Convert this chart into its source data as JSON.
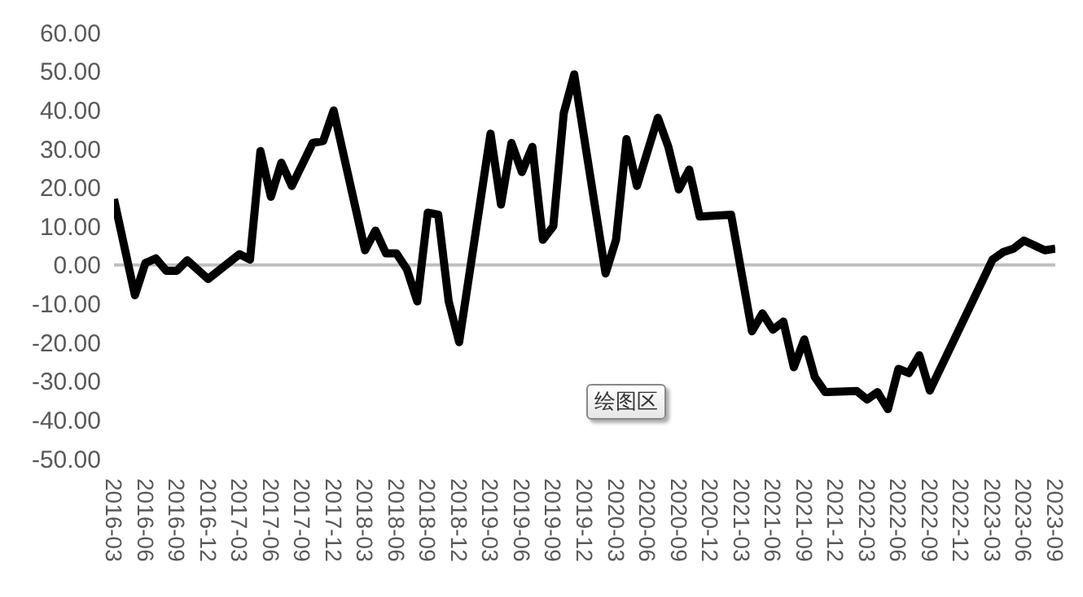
{
  "chart_data": {
    "type": "line",
    "x": [
      "2016-03",
      "2016-05",
      "2016-06",
      "2016-07",
      "2016-08",
      "2016-09",
      "2016-10",
      "2016-12",
      "2017-03",
      "2017-04",
      "2017-05",
      "2017-06",
      "2017-07",
      "2017-08",
      "2017-10",
      "2017-11",
      "2017-12",
      "2018-03",
      "2018-04",
      "2018-05",
      "2018-06",
      "2018-07",
      "2018-08",
      "2018-09",
      "2018-10",
      "2018-11",
      "2018-12",
      "2019-03",
      "2019-04",
      "2019-05",
      "2019-06",
      "2019-07",
      "2019-08",
      "2019-09",
      "2019-10",
      "2019-11",
      "2020-02",
      "2020-03",
      "2020-04",
      "2020-05",
      "2020-07",
      "2020-08",
      "2020-09",
      "2020-10",
      "2020-11",
      "2021-02",
      "2021-04",
      "2021-05",
      "2021-06",
      "2021-07",
      "2021-08",
      "2021-09",
      "2021-10",
      "2021-11",
      "2022-02",
      "2022-03",
      "2022-04",
      "2022-05",
      "2022-06",
      "2022-07",
      "2022-08",
      "2022-09",
      "2023-03",
      "2023-04",
      "2023-05",
      "2023-06",
      "2023-08",
      "2023-09"
    ],
    "series": [
      {
        "color": "#000000",
        "values": [
          17,
          -7.8,
          0.5,
          1.7,
          -1.5,
          -1.5,
          1.2,
          -3.6,
          2.8,
          1.4,
          29.4,
          17.6,
          26.4,
          20.4,
          31.5,
          32,
          39.9,
          3.8,
          8.9,
          3,
          3,
          -1.1,
          -9.4,
          13.5,
          13,
          -9.4,
          -19.9,
          33.9,
          15.6,
          31.5,
          24,
          30.5,
          6.5,
          10,
          39.2,
          49.2,
          -2.2,
          6.5,
          32.5,
          20.4,
          38,
          30.5,
          19.5,
          24.6,
          12.5,
          13,
          -17.1,
          -12.5,
          -16.7,
          -14.6,
          -26.4,
          -19.2,
          -28.9,
          -32.8,
          -32.5,
          -34.7,
          -32.8,
          -37.2,
          -26.8,
          -27.9,
          -23.3,
          -32.4,
          1.4,
          3.3,
          4.2,
          6.3,
          3.8,
          4.2
        ]
      }
    ],
    "xlim": [
      "2016-03",
      "2023-09"
    ],
    "xticks": [
      "2016-03",
      "2016-06",
      "2016-09",
      "2016-12",
      "2017-03",
      "2017-06",
      "2017-09",
      "2017-12",
      "2018-03",
      "2018-06",
      "2018-09",
      "2018-12",
      "2019-03",
      "2019-06",
      "2019-09",
      "2019-12",
      "2020-03",
      "2020-06",
      "2020-09",
      "2020-12",
      "2021-03",
      "2021-06",
      "2021-09",
      "2021-12",
      "2022-03",
      "2022-06",
      "2022-09",
      "2022-12",
      "2023-03",
      "2023-06",
      "2023-09"
    ],
    "ylim": [
      -50,
      60
    ],
    "yticks": [
      {
        "value": -50,
        "label": "-50.00"
      },
      {
        "value": -40,
        "label": "-40.00"
      },
      {
        "value": -30,
        "label": "-30.00"
      },
      {
        "value": -20,
        "label": "-20.00"
      },
      {
        "value": -10,
        "label": "-10.00"
      },
      {
        "value": 0,
        "label": "0.00"
      },
      {
        "value": 10,
        "label": "10.00"
      },
      {
        "value": 20,
        "label": "20.00"
      },
      {
        "value": 30,
        "label": "30.00"
      },
      {
        "value": 40,
        "label": "40.00"
      },
      {
        "value": 50,
        "label": "50.00"
      },
      {
        "value": 60,
        "label": "60.00"
      }
    ],
    "ref_lines": [
      {
        "axis": "y",
        "value": 0,
        "color": "#bfbfbf"
      }
    ],
    "annotations": [
      "绘图区"
    ],
    "grid": false,
    "marker": "none",
    "line_style": "solid"
  }
}
